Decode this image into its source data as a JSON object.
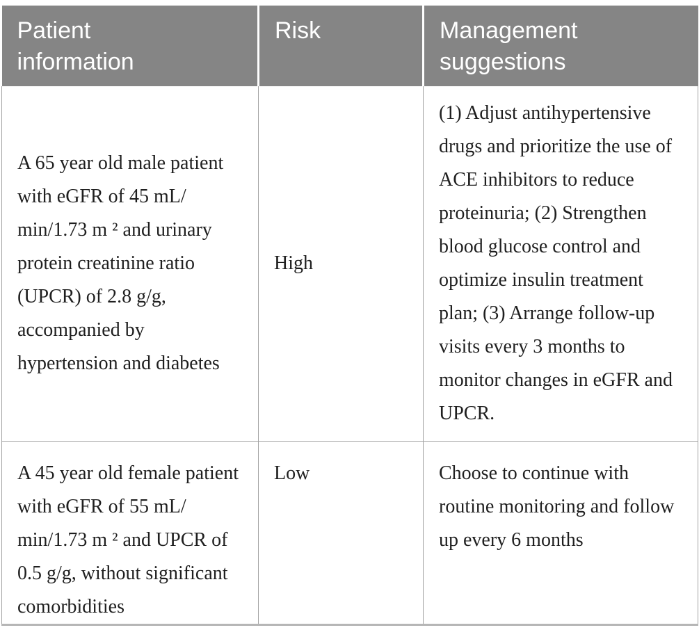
{
  "colors": {
    "header_background": "#858585",
    "header_text": "#ffffff",
    "body_text": "#1f1f1f",
    "cell_border": "#a3a3a3",
    "bottom_rule": "#b6b6b6",
    "header_separator": "#ffffff"
  },
  "table": {
    "headers": [
      {
        "id": "patient",
        "label": "Patient\ninformation"
      },
      {
        "id": "risk",
        "label": "Risk"
      },
      {
        "id": "management",
        "label": "Management\nsuggestions"
      }
    ],
    "rows": [
      {
        "patient": "A 65 year old male patient\nwith eGFR of 45 mL/\nmin/1.73 m ² and urinary\nprotein creatinine ratio\n(UPCR) of 2.8 g/g,\naccompanied by\nhypertension and diabetes",
        "risk": "High",
        "management": "(1) Adjust antihypertensive\ndrugs and prioritize the use of\nACE inhibitors to reduce\nproteinuria; (2) Strengthen\nblood glucose control and\noptimize insulin treatment\nplan; (3) Arrange follow-up\nvisits every 3 months to\nmonitor changes in eGFR and\nUPCR."
      },
      {
        "patient": "A 45 year old female patient\nwith eGFR of 55 mL/\nmin/1.73 m ² and UPCR of\n0.5 g/g, without significant\ncomorbidities",
        "risk": "Low",
        "management": "Choose to continue with\nroutine monitoring and follow\nup every 6 months"
      }
    ]
  },
  "chart_data": {
    "type": "table",
    "columns": [
      "Patient information",
      "Risk",
      "Management suggestions"
    ],
    "rows": [
      [
        "A 65 year old male patient with eGFR of 45 mL/min/1.73 m ² and urinary protein creatinine ratio (UPCR) of 2.8 g/g, accompanied by hypertension and diabetes",
        "High",
        "(1) Adjust antihypertensive drugs and prioritize the use of ACE inhibitors to reduce proteinuria; (2) Strengthen blood glucose control and optimize insulin treatment plan; (3) Arrange follow-up visits every 3 months to monitor changes in eGFR and UPCR."
      ],
      [
        "A 45 year old female patient with eGFR of 55 mL/min/1.73 m ² and UPCR of 0.5 g/g, without significant comorbidities",
        "Low",
        "Choose to continue with routine monitoring and follow up every 6 months"
      ]
    ]
  }
}
